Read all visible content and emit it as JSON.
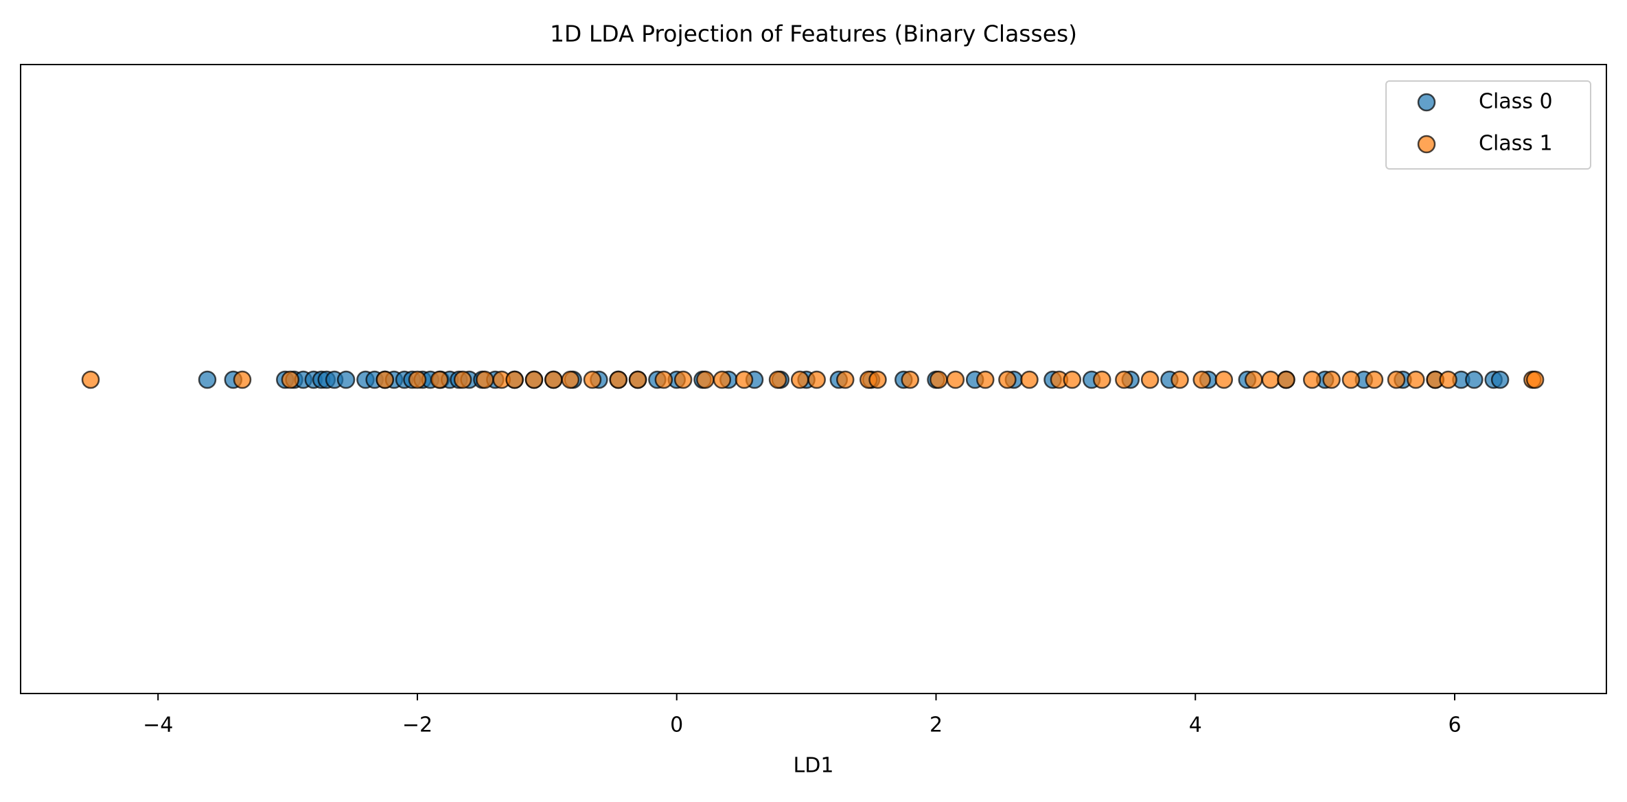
{
  "chart_data": {
    "type": "scatter",
    "title": "1D LDA Projection of Features (Binary Classes)",
    "x_label": "LD1",
    "xlim": [
      -5.06,
      7.17
    ],
    "xticks": [
      {
        "value": -4,
        "label": "−4"
      },
      {
        "value": -2,
        "label": "−2"
      },
      0,
      2,
      4,
      6
    ],
    "grid": false,
    "legend": "upper right",
    "series": [
      {
        "name": "Class 0",
        "color": "#1f77b4",
        "values": [
          -3.62,
          -3.42,
          -3.02,
          -2.95,
          -2.88,
          -2.8,
          -2.74,
          -2.7,
          -2.64,
          -2.55,
          -2.4,
          -2.33,
          -2.25,
          -2.18,
          -2.1,
          -2.04,
          -1.96,
          -1.9,
          -1.82,
          -1.75,
          -1.68,
          -1.6,
          -1.5,
          -1.4,
          -1.25,
          -1.1,
          -0.95,
          -0.8,
          -0.6,
          -0.45,
          -0.3,
          -0.15,
          0.0,
          0.2,
          0.4,
          0.6,
          0.8,
          1.0,
          1.25,
          1.5,
          1.75,
          2.0,
          2.3,
          2.6,
          2.9,
          3.2,
          3.5,
          3.8,
          4.1,
          4.4,
          4.7,
          5.0,
          5.3,
          5.6,
          5.85,
          6.05,
          6.15,
          6.3,
          6.35
        ]
      },
      {
        "name": "Class 1",
        "color": "#ff7f0e",
        "values": [
          -4.52,
          -3.35,
          -2.98,
          -2.25,
          -2.0,
          -1.83,
          -1.65,
          -1.48,
          -1.35,
          -1.25,
          -1.1,
          -0.95,
          -0.82,
          -0.65,
          -0.45,
          -0.3,
          -0.1,
          0.05,
          0.22,
          0.35,
          0.52,
          0.78,
          0.95,
          1.08,
          1.3,
          1.48,
          1.55,
          1.8,
          2.02,
          2.15,
          2.38,
          2.55,
          2.72,
          2.95,
          3.05,
          3.28,
          3.45,
          3.65,
          3.88,
          4.05,
          4.22,
          4.45,
          4.58,
          4.7,
          4.9,
          5.05,
          5.2,
          5.38,
          5.55,
          5.7,
          5.85,
          5.95,
          6.6,
          6.62
        ]
      }
    ]
  }
}
